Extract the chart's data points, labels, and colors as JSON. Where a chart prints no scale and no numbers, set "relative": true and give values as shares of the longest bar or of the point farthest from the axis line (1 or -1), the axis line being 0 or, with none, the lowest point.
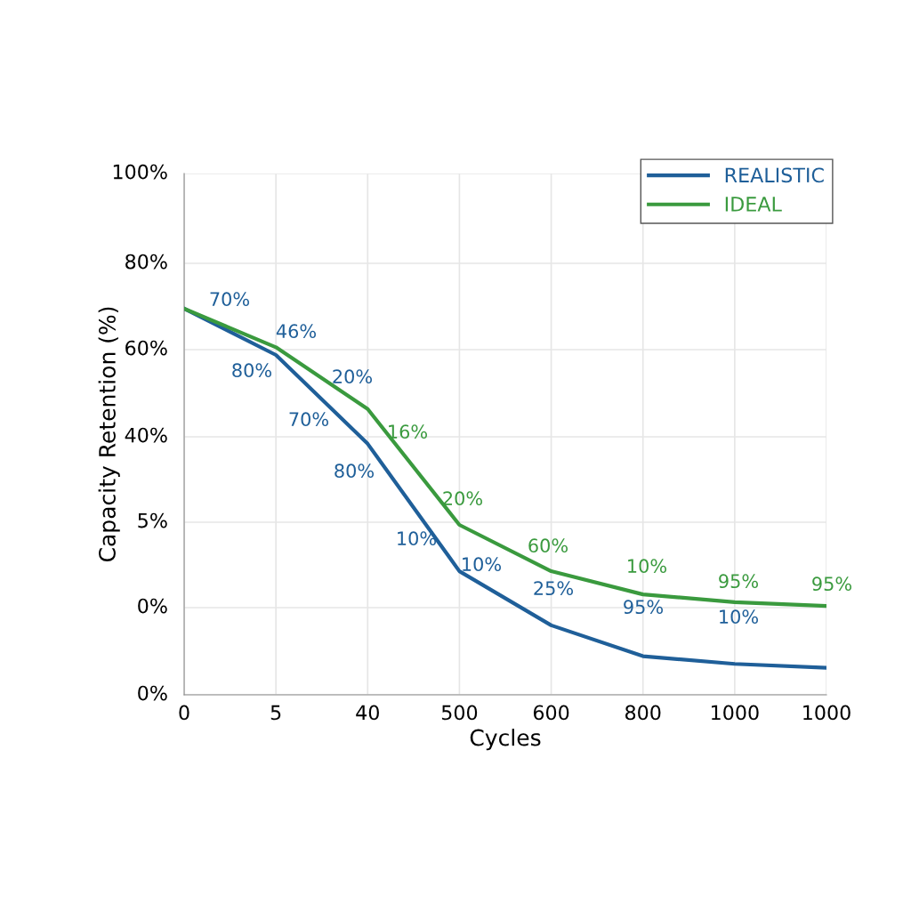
{
  "chart_data": {
    "type": "line",
    "xlabel": "Cycles",
    "ylabel": "Capacity Retention (%)",
    "relative": true,
    "categories": [
      "0",
      "5",
      "40",
      "500",
      "600",
      "800",
      "1000",
      "1000"
    ],
    "grid": true,
    "legend": "top right",
    "marker": "none",
    "line_style": "solid",
    "series": [
      {
        "name": "REALISTIC",
        "color": "#1f5f99",
        "values": [
          1.0,
          0.88,
          0.65,
          0.32,
          0.18,
          0.1,
          0.08,
          0.07
        ]
      },
      {
        "name": "IDEAL",
        "color": "#3a9a3e",
        "values": [
          1.0,
          0.9,
          0.74,
          0.44,
          0.32,
          0.26,
          0.24,
          0.23
        ]
      }
    ],
    "annotations": [
      "100%",
      "80%",
      "60%",
      "40%",
      "5%",
      "0%",
      "0%",
      "70%",
      "46%",
      "80%",
      "20%",
      "70%",
      "80%",
      "10%",
      "10%",
      "25%",
      "95%",
      "10%",
      "16%",
      "20%",
      "60%",
      "10%",
      "95%",
      "95%"
    ]
  }
}
